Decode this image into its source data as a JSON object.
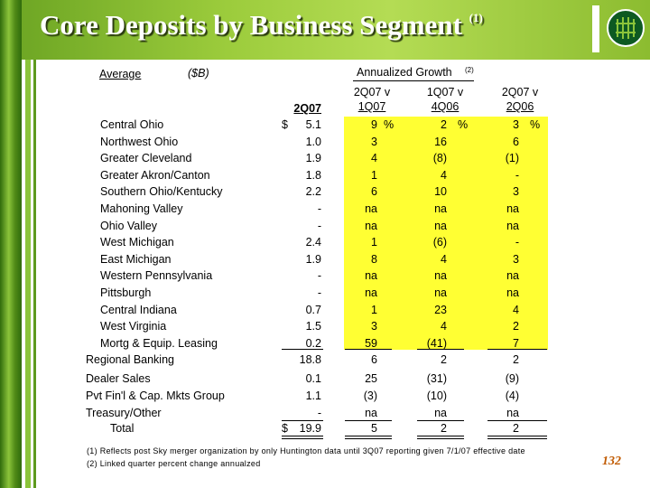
{
  "title": "Core Deposits by Business Segment",
  "title_note": "(1)",
  "header": {
    "average": "Average",
    "units": "($B)",
    "growth": "Annualized Growth",
    "growth_note": "(2)",
    "col1": "2Q07",
    "col2a": "2Q07 v",
    "col2b": "1Q07",
    "col3a": "1Q07 v",
    "col3b": "4Q06",
    "col4a": "2Q07 v",
    "col4b": "2Q06"
  },
  "pct_sign": "%",
  "dollar_sign": "$",
  "rows": [
    {
      "label": "Central Ohio",
      "v": "5.1",
      "g1": "9",
      "g2": "2",
      "g3": "3"
    },
    {
      "label": "Northwest Ohio",
      "v": "1.0",
      "g1": "3",
      "g2": "16",
      "g3": "6"
    },
    {
      "label": "Greater Cleveland",
      "v": "1.9",
      "g1": "4",
      "g2": "(8)",
      "g3": "(1)"
    },
    {
      "label": "Greater Akron/Canton",
      "v": "1.8",
      "g1": "1",
      "g2": "4",
      "g3": "-"
    },
    {
      "label": "Southern Ohio/Kentucky",
      "v": "2.2",
      "g1": "6",
      "g2": "10",
      "g3": "3"
    },
    {
      "label": "Mahoning Valley",
      "v": "-",
      "g1": "na",
      "g2": "na",
      "g3": "na"
    },
    {
      "label": "Ohio Valley",
      "v": "-",
      "g1": "na",
      "g2": "na",
      "g3": "na"
    },
    {
      "label": "West Michigan",
      "v": "2.4",
      "g1": "1",
      "g2": "(6)",
      "g3": "-"
    },
    {
      "label": "East Michigan",
      "v": "1.9",
      "g1": "8",
      "g2": "4",
      "g3": "3"
    },
    {
      "label": "Western Pennsylvania",
      "v": "-",
      "g1": "na",
      "g2": "na",
      "g3": "na"
    },
    {
      "label": "Pittsburgh",
      "v": "-",
      "g1": "na",
      "g2": "na",
      "g3": "na"
    },
    {
      "label": "Central Indiana",
      "v": "0.7",
      "g1": "1",
      "g2": "23",
      "g3": "4"
    },
    {
      "label": "West Virginia",
      "v": "1.5",
      "g1": "3",
      "g2": "4",
      "g3": "2"
    },
    {
      "label": "Mortg & Equip. Leasing",
      "v": "0.2",
      "g1": "59",
      "g2": "(41)",
      "g3": "7"
    }
  ],
  "regional": {
    "label": "Regional Banking",
    "v": "18.8",
    "g1": "6",
    "g2": "2",
    "g3": "2"
  },
  "lower": [
    {
      "label": "Dealer Sales",
      "v": "0.1",
      "g1": "25",
      "g2": "(31)",
      "g3": "(9)"
    },
    {
      "label": "Pvt Fin'l & Cap. Mkts Group",
      "v": "1.1",
      "g1": "(3)",
      "g2": "(10)",
      "g3": "(4)"
    },
    {
      "label": "Treasury/Other",
      "v": "-",
      "g1": "na",
      "g2": "na",
      "g3": "na"
    }
  ],
  "total": {
    "label": "Total",
    "v": "19.9",
    "g1": "5",
    "g2": "2",
    "g3": "2"
  },
  "footnotes": [
    "(1)  Reflects post Sky merger organization by only Huntington data until 3Q07 reporting given 7/1/07 effective date",
    "(2)  Linked quarter percent change annualzed"
  ],
  "page_number": "132",
  "colors": {
    "header_green": "#9ccc3c",
    "highlight": "#ffff33",
    "page_number": "#c05a00"
  }
}
